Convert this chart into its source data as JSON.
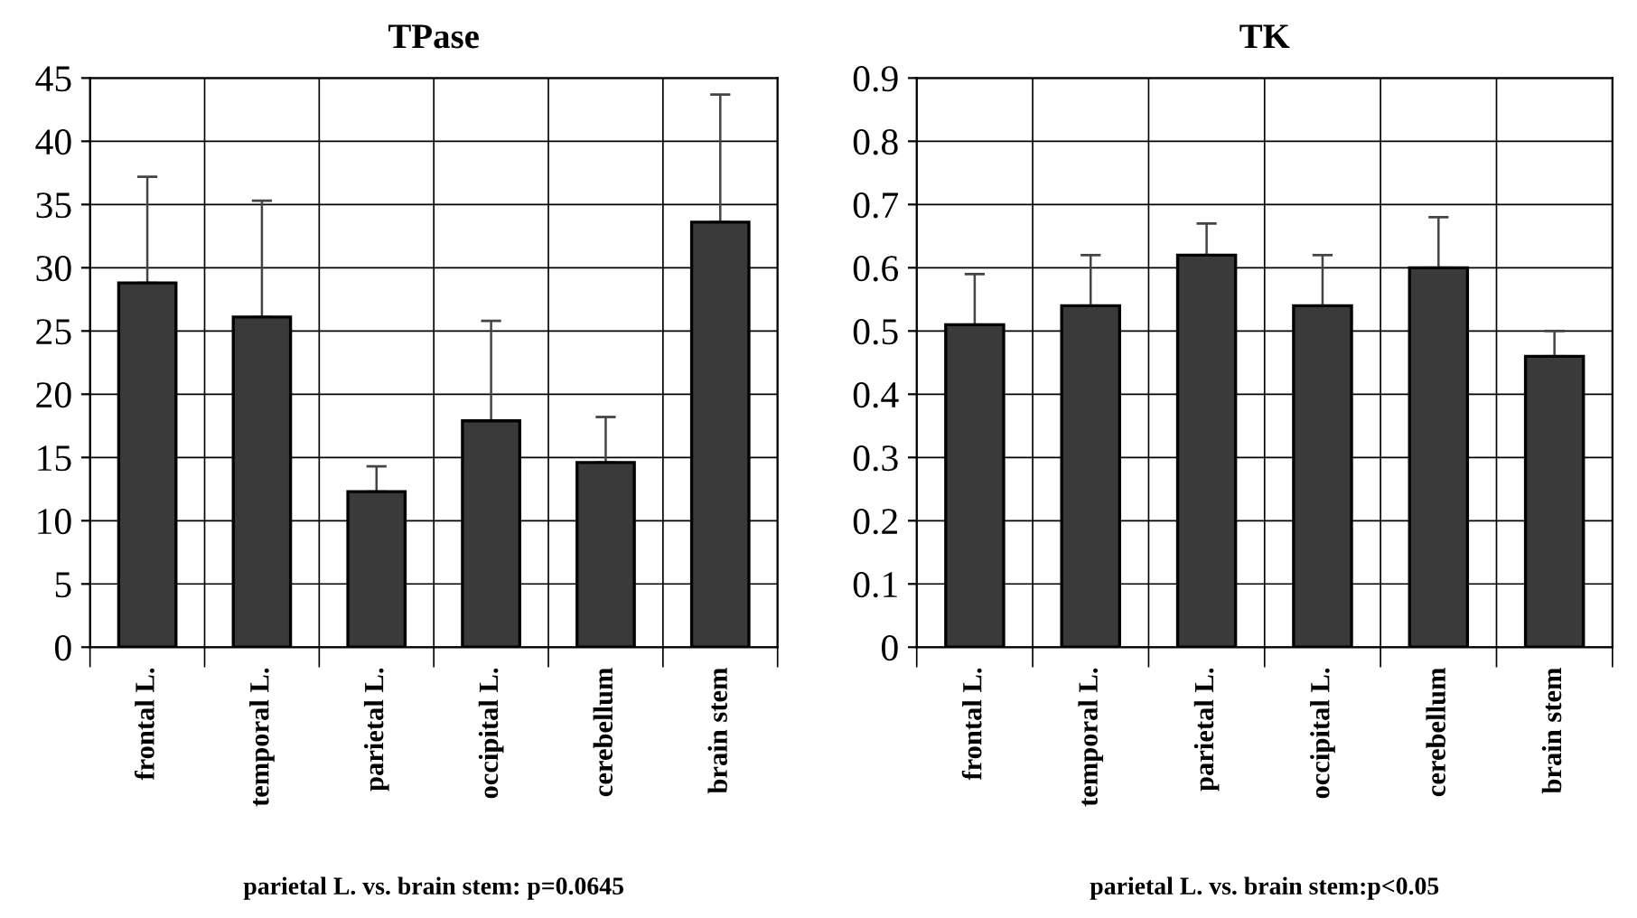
{
  "chart_data": [
    {
      "type": "bar",
      "title": "TPase",
      "categories": [
        "frontal L.",
        "temporal L.",
        "parietal L.",
        "occipital L.",
        "cerebellum",
        "brain stem"
      ],
      "values": [
        28.8,
        26.1,
        12.3,
        17.9,
        14.6,
        33.6
      ],
      "errors": [
        [
          28.8,
          37.2
        ],
        [
          26.1,
          35.3
        ],
        [
          12.3,
          14.3
        ],
        [
          17.9,
          25.8
        ],
        [
          14.6,
          18.2
        ],
        [
          33.6,
          43.7
        ]
      ],
      "color": "#3a3a3a",
      "ylim": [
        0,
        45
      ],
      "yticks": [
        0,
        5,
        10,
        15,
        20,
        25,
        30,
        35,
        40,
        45
      ],
      "grid": true,
      "annotations": [
        "parietal L. vs. brain stem: p=0.0645"
      ]
    },
    {
      "type": "bar",
      "title": "TK",
      "categories": [
        "frontal L.",
        "temporal L.",
        "parietal L.",
        "occipital L.",
        "cerebellum",
        "brain stem"
      ],
      "values": [
        0.51,
        0.54,
        0.62,
        0.54,
        0.6,
        0.46
      ],
      "errors": [
        [
          0.51,
          0.59
        ],
        [
          0.54,
          0.62
        ],
        [
          0.62,
          0.67
        ],
        [
          0.54,
          0.62
        ],
        [
          0.6,
          0.68
        ],
        [
          0.46,
          0.5
        ]
      ],
      "color": "#3a3a3a",
      "ylim": [
        0,
        0.9
      ],
      "yticks": [
        0,
        0.1,
        0.2,
        0.3,
        0.4,
        0.5,
        0.6,
        0.7,
        0.8,
        0.9
      ],
      "grid": true,
      "annotations": [
        "parietal L. vs. brain stem:p<0.05"
      ]
    }
  ]
}
